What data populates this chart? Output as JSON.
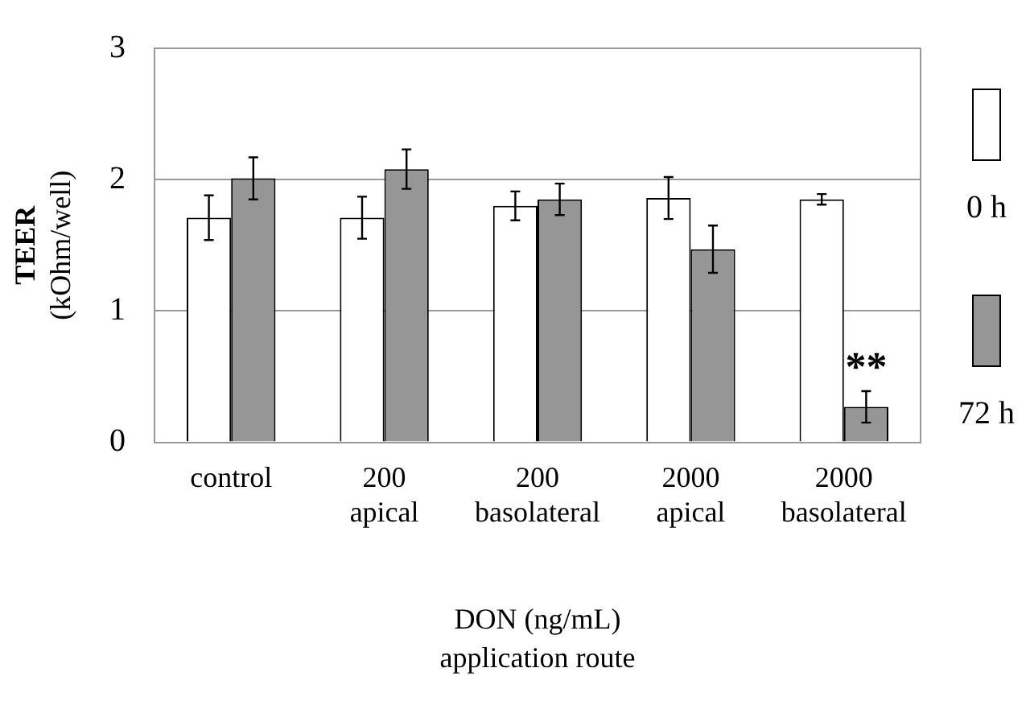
{
  "chart_data": {
    "type": "bar",
    "xlabel": "DON (ng/mL)\napplication route",
    "ylabel": "TEER\n(kOhm/well)",
    "categories": [
      "control",
      "200\napical",
      "200\nbasolateral",
      "2000\napical",
      "2000\nbasolateral"
    ],
    "series": [
      {
        "name": "0 h",
        "color": "#ffffff",
        "values": [
          1.71,
          1.71,
          1.8,
          1.86,
          1.85
        ],
        "errors": [
          0.17,
          0.16,
          0.11,
          0.16,
          0.04
        ]
      },
      {
        "name": "72 h",
        "color": "#969696",
        "values": [
          2.01,
          2.08,
          1.85,
          1.47,
          0.27
        ],
        "errors": [
          0.16,
          0.15,
          0.12,
          0.18,
          0.12
        ]
      }
    ],
    "ylim": [
      0,
      3
    ],
    "yticks": [
      0,
      1,
      2,
      3
    ],
    "grid": "y",
    "legend": "right",
    "annotations": [
      {
        "text": "**",
        "x": "2000\nbasolateral",
        "y": 0.55
      }
    ]
  }
}
